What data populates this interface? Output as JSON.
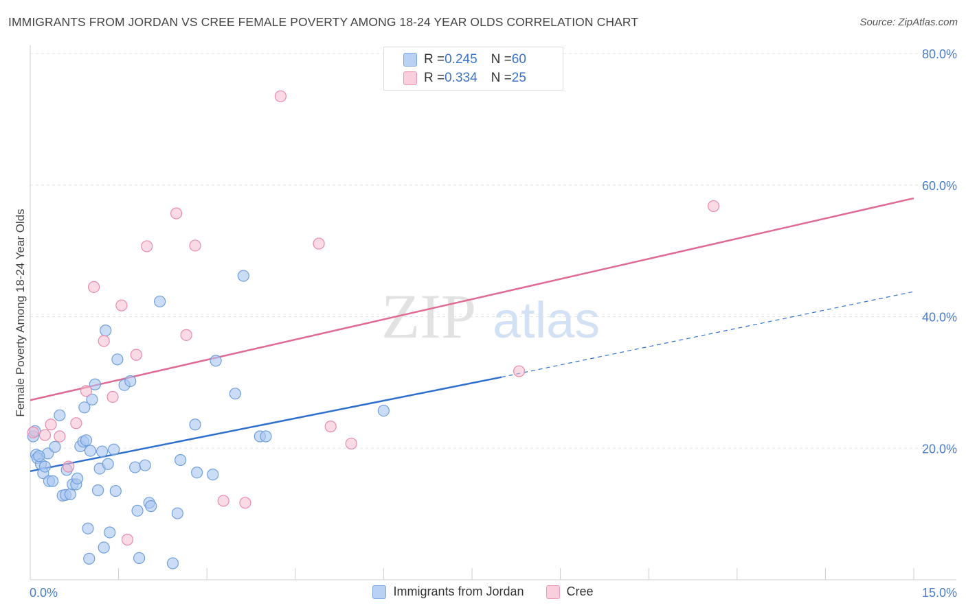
{
  "title": "IMMIGRANTS FROM JORDAN VS CREE FEMALE POVERTY AMONG 18-24 YEAR OLDS CORRELATION CHART",
  "source": "Source: ZipAtlas.com",
  "watermark": {
    "zip": "ZIP",
    "atlas": "atlas"
  },
  "legend": {
    "jordan": {
      "r_label": "R = ",
      "r_value": "0.245",
      "n_label": "N = ",
      "n_value": "60"
    },
    "cree": {
      "r_label": "R = ",
      "r_value": "0.334",
      "n_label": "N = ",
      "n_value": "25"
    }
  },
  "colors": {
    "jordan_fill": "#a9c7f0",
    "jordan_stroke": "#6f9fdc",
    "jordan_line": "#2e6fce",
    "cree_fill": "#f6bcd0",
    "cree_stroke": "#e88aaa",
    "cree_line": "#e06a93",
    "grid": "#e3e3e3",
    "axis_text": "#4a7cc7"
  },
  "chart_data": {
    "type": "scatter",
    "title": "IMMIGRANTS FROM JORDAN VS CREE FEMALE POVERTY AMONG 18-24 YEAR OLDS CORRELATION CHART",
    "xlabel": "",
    "ylabel": "Female Poverty Among 18-24 Year Olds",
    "xlim": [
      0,
      15
    ],
    "ylim": [
      0,
      80
    ],
    "x_tick_labels": [
      "0.0%",
      "15.0%"
    ],
    "y_ticks": [
      20,
      40,
      60,
      80
    ],
    "y_tick_labels": [
      "20.0%",
      "40.0%",
      "60.0%",
      "80.0%"
    ],
    "series": [
      {
        "name": "Immigrants from Jordan",
        "points": [
          [
            0.05,
            21.8
          ],
          [
            0.08,
            22.6
          ],
          [
            0.1,
            19.0
          ],
          [
            0.12,
            18.5
          ],
          [
            0.18,
            17.6
          ],
          [
            0.22,
            16.2
          ],
          [
            0.25,
            17.2
          ],
          [
            0.3,
            19.2
          ],
          [
            0.32,
            15.0
          ],
          [
            0.38,
            15.0
          ],
          [
            0.42,
            20.2
          ],
          [
            0.5,
            25.0
          ],
          [
            0.55,
            12.8
          ],
          [
            0.6,
            12.9
          ],
          [
            0.62,
            16.7
          ],
          [
            0.68,
            13.0
          ],
          [
            0.72,
            14.5
          ],
          [
            0.78,
            14.5
          ],
          [
            0.8,
            15.4
          ],
          [
            0.85,
            20.3
          ],
          [
            0.9,
            21.0
          ],
          [
            0.92,
            26.2
          ],
          [
            0.95,
            21.2
          ],
          [
            0.98,
            7.8
          ],
          [
            1.0,
            3.2
          ],
          [
            1.02,
            19.6
          ],
          [
            1.05,
            27.4
          ],
          [
            1.1,
            29.7
          ],
          [
            1.15,
            13.6
          ],
          [
            1.18,
            16.9
          ],
          [
            1.22,
            19.5
          ],
          [
            1.28,
            37.9
          ],
          [
            1.32,
            17.6
          ],
          [
            1.35,
            7.2
          ],
          [
            1.42,
            19.8
          ],
          [
            1.45,
            13.5
          ],
          [
            1.48,
            33.5
          ],
          [
            1.6,
            29.6
          ],
          [
            1.7,
            30.2
          ],
          [
            1.78,
            17.1
          ],
          [
            1.82,
            10.5
          ],
          [
            1.85,
            3.3
          ],
          [
            1.95,
            17.4
          ],
          [
            2.02,
            11.7
          ],
          [
            2.05,
            11.2
          ],
          [
            2.2,
            42.3
          ],
          [
            2.42,
            2.5
          ],
          [
            2.5,
            10.1
          ],
          [
            2.55,
            18.2
          ],
          [
            2.8,
            23.6
          ],
          [
            2.83,
            16.3
          ],
          [
            3.1,
            16.0
          ],
          [
            3.15,
            33.3
          ],
          [
            3.48,
            28.3
          ],
          [
            3.62,
            46.2
          ],
          [
            3.9,
            21.8
          ],
          [
            4.0,
            21.8
          ],
          [
            6.0,
            25.7
          ],
          [
            1.25,
            4.9
          ],
          [
            0.15,
            18.8
          ]
        ]
      },
      {
        "name": "Cree",
        "points": [
          [
            0.05,
            22.4
          ],
          [
            0.35,
            23.6
          ],
          [
            0.5,
            21.8
          ],
          [
            0.65,
            17.2
          ],
          [
            0.78,
            23.8
          ],
          [
            0.95,
            28.7
          ],
          [
            1.08,
            44.5
          ],
          [
            1.25,
            36.3
          ],
          [
            1.4,
            27.8
          ],
          [
            1.55,
            41.7
          ],
          [
            1.65,
            6.1
          ],
          [
            1.8,
            34.2
          ],
          [
            1.98,
            50.7
          ],
          [
            2.48,
            55.7
          ],
          [
            2.65,
            37.2
          ],
          [
            2.8,
            50.8
          ],
          [
            3.28,
            12.0
          ],
          [
            3.65,
            11.7
          ],
          [
            4.25,
            73.5
          ],
          [
            4.9,
            51.1
          ],
          [
            5.1,
            23.3
          ],
          [
            5.45,
            20.7
          ],
          [
            8.3,
            31.7
          ],
          [
            11.6,
            56.8
          ],
          [
            0.25,
            22.0
          ]
        ]
      }
    ],
    "trend_lines": [
      {
        "series": "Immigrants from Jordan",
        "solid_from": [
          0,
          16.5
        ],
        "solid_to": [
          8.0,
          30.8
        ],
        "dashed_to": [
          15,
          43.8
        ]
      },
      {
        "series": "Cree",
        "from": [
          0,
          27.3
        ],
        "to": [
          15,
          58.0
        ]
      }
    ],
    "legend_position": "top-center"
  }
}
